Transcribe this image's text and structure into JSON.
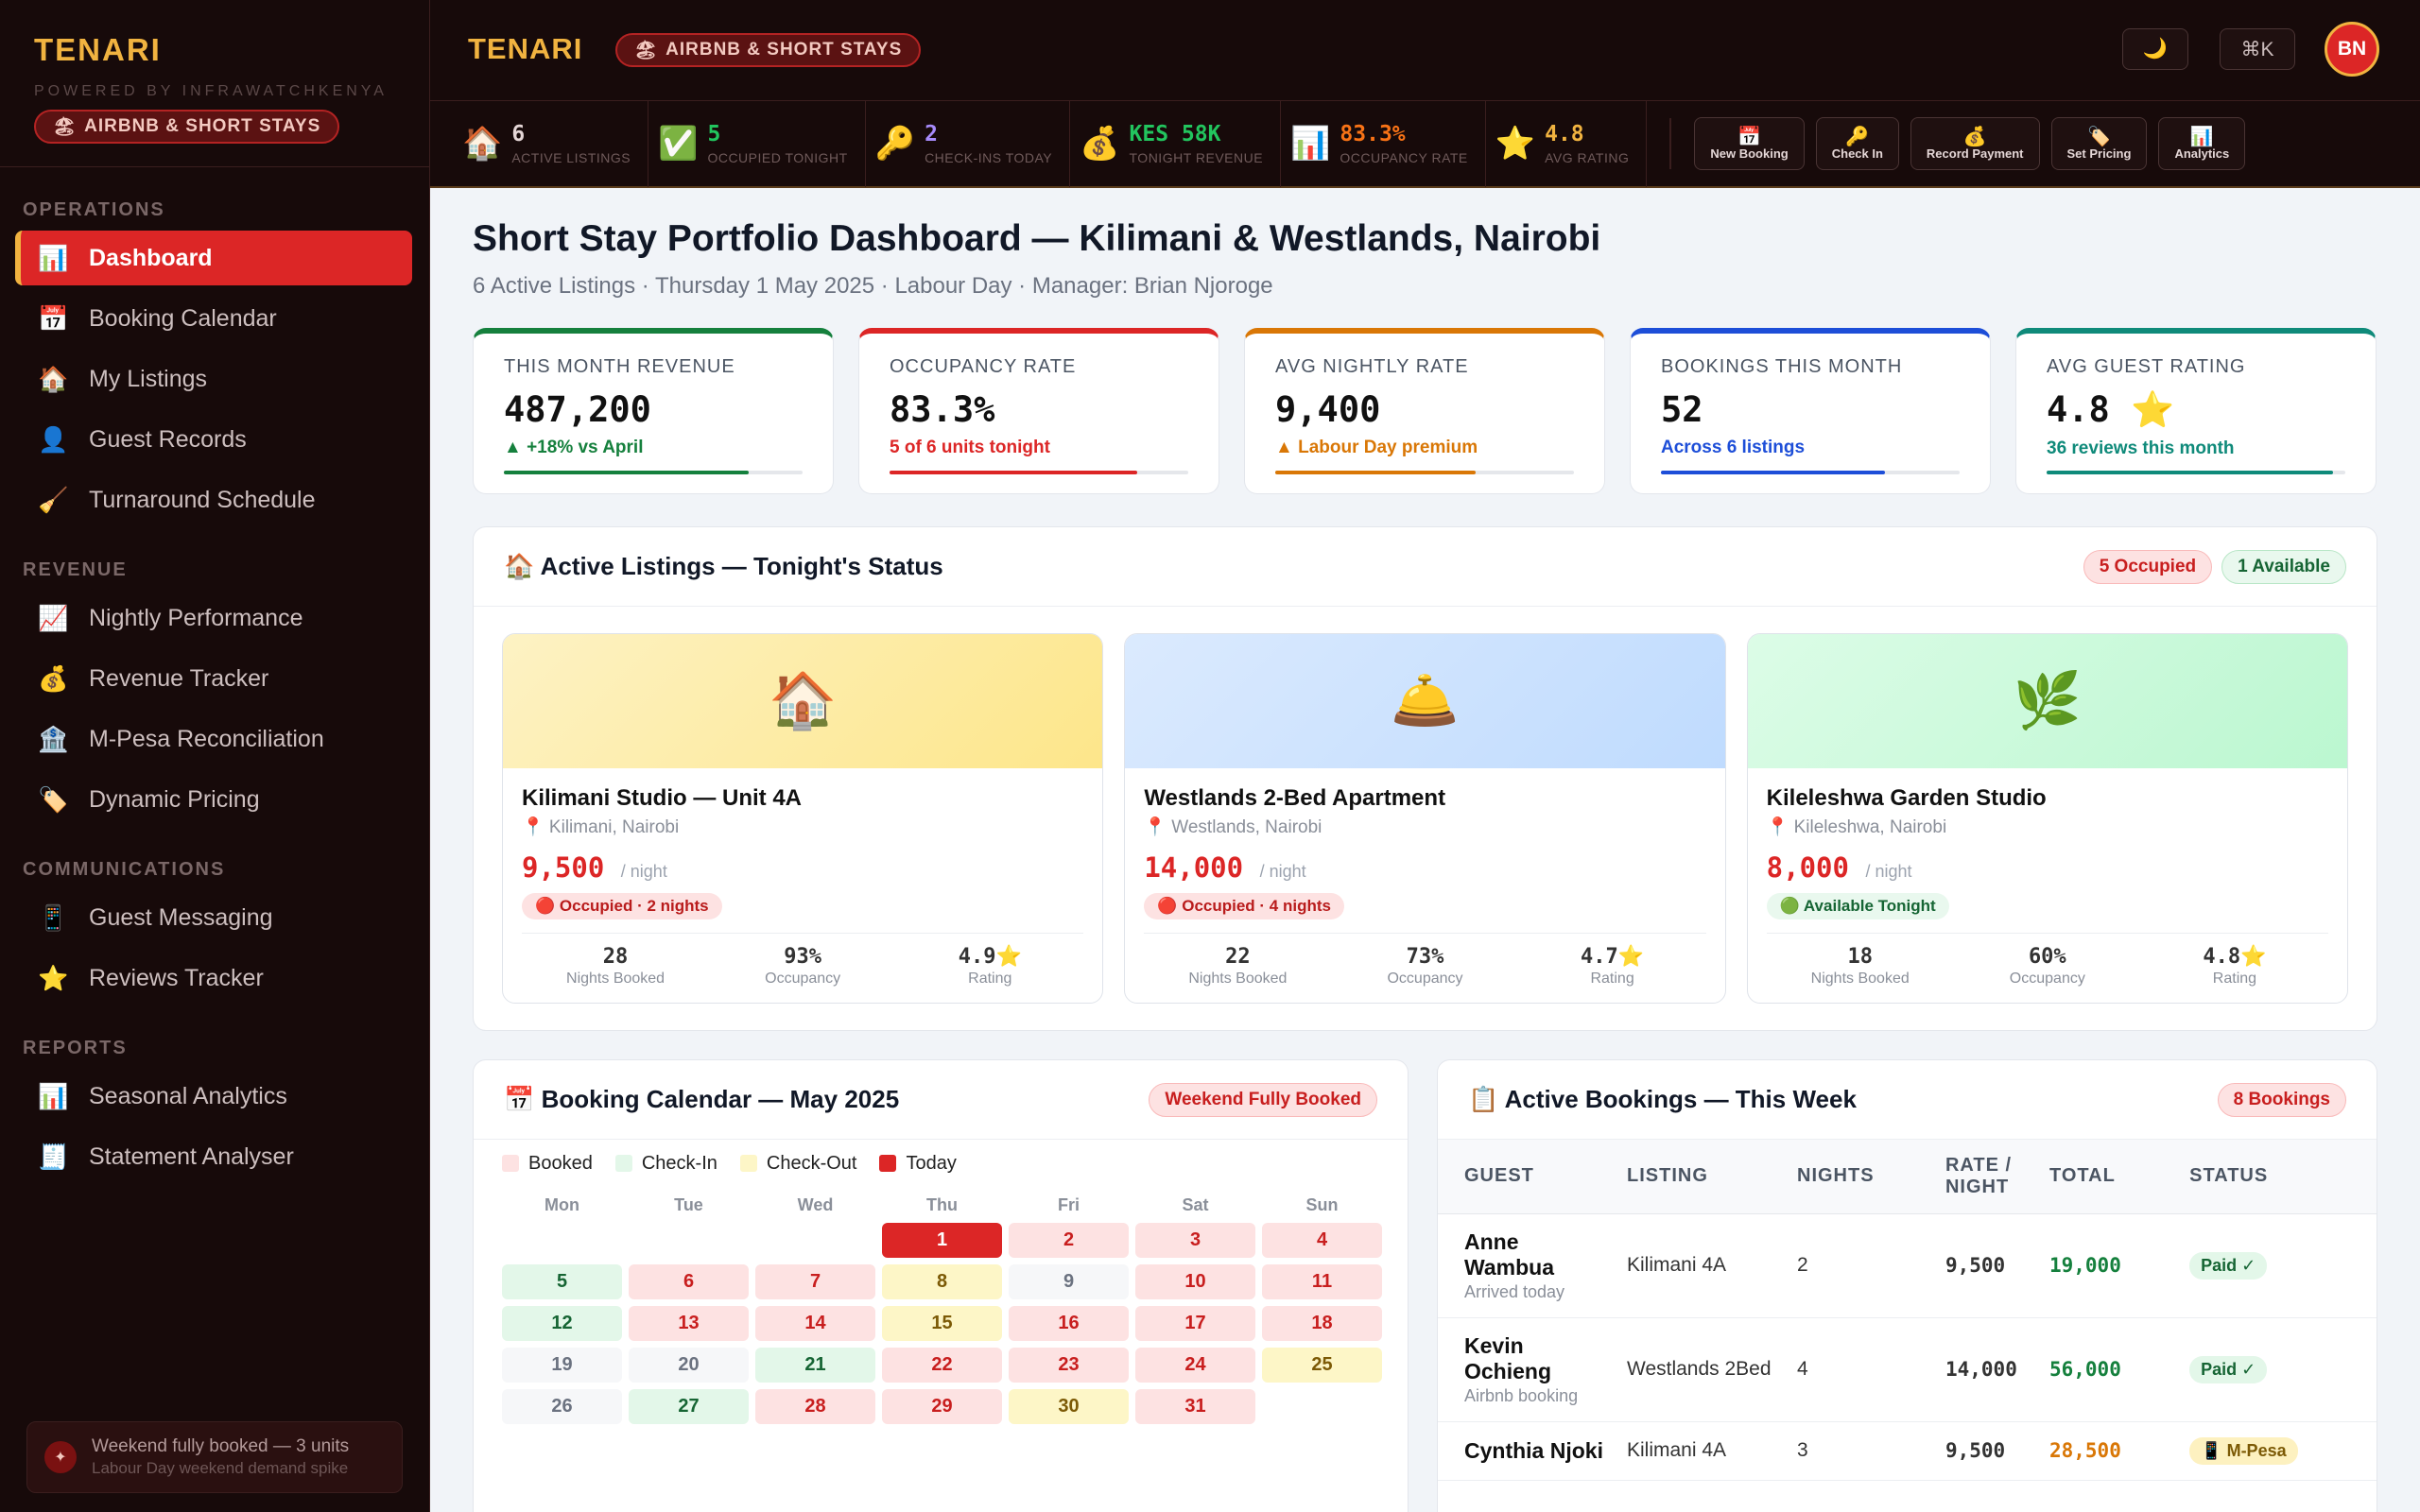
{
  "brand": {
    "title": "TENARI",
    "powered_by": "POWERED BY INFRAWATCHKENYA",
    "tag": "AIRBNB & SHORT STAYS",
    "tag_icon": "🏖"
  },
  "sidebar": {
    "sections": [
      {
        "label": "OPERATIONS",
        "items": [
          {
            "icon": "📊",
            "label": "Dashboard",
            "active": true
          },
          {
            "icon": "📅",
            "label": "Booking Calendar"
          },
          {
            "icon": "🏠",
            "label": "My Listings"
          },
          {
            "icon": "👤",
            "label": "Guest Records"
          },
          {
            "icon": "🧹",
            "label": "Turnaround Schedule"
          }
        ]
      },
      {
        "label": "REVENUE",
        "items": [
          {
            "icon": "📈",
            "label": "Nightly Performance"
          },
          {
            "icon": "💰",
            "label": "Revenue Tracker"
          },
          {
            "icon": "🏦",
            "label": "M-Pesa Reconciliation"
          },
          {
            "icon": "🏷️",
            "label": "Dynamic Pricing"
          }
        ]
      },
      {
        "label": "COMMUNICATIONS",
        "items": [
          {
            "icon": "📱",
            "label": "Guest Messaging"
          },
          {
            "icon": "⭐",
            "label": "Reviews Tracker"
          }
        ]
      },
      {
        "label": "REPORTS",
        "items": [
          {
            "icon": "📊",
            "label": "Seasonal Analytics"
          },
          {
            "icon": "🧾",
            "label": "Statement Analyser"
          }
        ]
      }
    ],
    "footer": {
      "icon": "✦",
      "line1": "Weekend fully booked — 3 units",
      "line2": "Labour Day weekend demand spike"
    }
  },
  "topbar": {
    "title": "TENARI",
    "tag": "AIRBNB & SHORT STAYS",
    "tag_icon": "🏖",
    "theme_icon": "🌙",
    "shortcut": "⌘K",
    "avatar": "BN"
  },
  "stats": [
    {
      "icon": "🏠",
      "value": "6",
      "label": "ACTIVE LISTINGS",
      "color": "#e5d7d7"
    },
    {
      "icon": "✅",
      "value": "5",
      "label": "OCCUPIED TONIGHT",
      "color": "#22c55e"
    },
    {
      "icon": "🔑",
      "value": "2",
      "label": "CHECK-INS TODAY",
      "color": "#a78bfa"
    },
    {
      "icon": "💰",
      "value": "KES 58K",
      "label": "TONIGHT REVENUE",
      "color": "#22c55e"
    },
    {
      "icon": "📊",
      "value": "83.3%",
      "label": "OCCUPANCY RATE",
      "color": "#f97316"
    },
    {
      "icon": "⭐",
      "value": "4.8",
      "label": "AVG RATING",
      "color": "#f1b340"
    }
  ],
  "quick_actions": [
    {
      "icon": "📅",
      "label": "New Booking"
    },
    {
      "icon": "🔑",
      "label": "Check In"
    },
    {
      "icon": "💰",
      "label": "Record Payment"
    },
    {
      "icon": "🏷️",
      "label": "Set Pricing"
    },
    {
      "icon": "📊",
      "label": "Analytics"
    }
  ],
  "page": {
    "title": "Short Stay Portfolio Dashboard — Kilimani & Westlands, Nairobi",
    "subtitle": "6 Active Listings · Thursday 1 May 2025 · Labour Day · Manager: Brian Njoroge"
  },
  "kpis": [
    {
      "label": "THIS MONTH REVENUE",
      "value": "487,200",
      "note": "▲ +18% vs April",
      "color": "#15803d",
      "progress": 0.82
    },
    {
      "label": "OCCUPANCY RATE",
      "value": "83.3%",
      "note": "5 of 6 units tonight",
      "color": "#dc2626",
      "progress": 0.83
    },
    {
      "label": "AVG NIGHTLY RATE",
      "value": "9,400",
      "note": "▲ Labour Day premium",
      "color": "#d97706",
      "progress": 0.67
    },
    {
      "label": "BOOKINGS THIS MONTH",
      "value": "52",
      "note": "Across 6 listings",
      "color": "#1d4ed8",
      "progress": 0.75
    },
    {
      "label": "AVG GUEST RATING",
      "value": "4.8  ⭐",
      "note": "36 reviews this month",
      "color": "#0f8a7a",
      "progress": 0.96
    }
  ],
  "listings": {
    "title": "🏠 Active Listings — Tonight's Status",
    "occupied_badge": "5 Occupied",
    "available_badge": "1 Available",
    "cards": [
      {
        "icon": "🏠",
        "gradient": [
          "#fdf2c4",
          "#fde68a"
        ],
        "name": "Kilimani Studio — Unit 4A",
        "location": "📍 Kilimani, Nairobi",
        "price": "9,500",
        "per": "/ night",
        "status": "🔴 Occupied · 2 nights",
        "status_type": "occ",
        "nights": "28",
        "nights_label": "Nights Booked",
        "occupancy": "93%",
        "occupancy_label": "Occupancy",
        "rating": "4.9⭐",
        "rating_label": "Rating"
      },
      {
        "icon": "🛎️",
        "gradient": [
          "#dbeafe",
          "#bfdbfe"
        ],
        "name": "Westlands 2-Bed Apartment",
        "location": "📍 Westlands, Nairobi",
        "price": "14,000",
        "per": "/ night",
        "status": "🔴 Occupied · 4 nights",
        "status_type": "occ",
        "nights": "22",
        "nights_label": "Nights Booked",
        "occupancy": "73%",
        "occupancy_label": "Occupancy",
        "rating": "4.7⭐",
        "rating_label": "Rating"
      },
      {
        "icon": "🌿",
        "gradient": [
          "#dcfce7",
          "#bbf7d0"
        ],
        "name": "Kileleshwa Garden Studio",
        "location": "📍 Kileleshwa, Nairobi",
        "price": "8,000",
        "per": "/ night",
        "status": "🟢 Available Tonight",
        "status_type": "av",
        "nights": "18",
        "nights_label": "Nights Booked",
        "occupancy": "60%",
        "occupancy_label": "Occupancy",
        "rating": "4.8⭐",
        "rating_label": "Rating"
      }
    ]
  },
  "calendar": {
    "title": "📅 Booking Calendar — May 2025",
    "badge": "Weekend Fully Booked",
    "legend": [
      {
        "label": "Booked",
        "color": "#fde2e2"
      },
      {
        "label": "Check-In",
        "color": "#e3f7e9"
      },
      {
        "label": "Check-Out",
        "color": "#fdf6c7"
      },
      {
        "label": "Today",
        "color": "#dc2626"
      }
    ],
    "weekdays": [
      "Mon",
      "Tue",
      "Wed",
      "Thu",
      "Fri",
      "Sat",
      "Sun"
    ],
    "days": [
      {
        "d": "",
        "s": "empty"
      },
      {
        "d": "",
        "s": "empty"
      },
      {
        "d": "",
        "s": "empty"
      },
      {
        "d": "1",
        "s": "today"
      },
      {
        "d": "2",
        "s": "booked"
      },
      {
        "d": "3",
        "s": "booked"
      },
      {
        "d": "4",
        "s": "booked"
      },
      {
        "d": "5",
        "s": "checkin"
      },
      {
        "d": "6",
        "s": "booked"
      },
      {
        "d": "7",
        "s": "booked"
      },
      {
        "d": "8",
        "s": "checkout"
      },
      {
        "d": "9",
        "s": "free"
      },
      {
        "d": "10",
        "s": "booked"
      },
      {
        "d": "11",
        "s": "booked"
      },
      {
        "d": "12",
        "s": "checkin"
      },
      {
        "d": "13",
        "s": "booked"
      },
      {
        "d": "14",
        "s": "booked"
      },
      {
        "d": "15",
        "s": "checkout"
      },
      {
        "d": "16",
        "s": "booked"
      },
      {
        "d": "17",
        "s": "booked"
      },
      {
        "d": "18",
        "s": "booked"
      },
      {
        "d": "19",
        "s": "free"
      },
      {
        "d": "20",
        "s": "free"
      },
      {
        "d": "21",
        "s": "checkin"
      },
      {
        "d": "22",
        "s": "booked"
      },
      {
        "d": "23",
        "s": "booked"
      },
      {
        "d": "24",
        "s": "booked"
      },
      {
        "d": "25",
        "s": "checkout"
      },
      {
        "d": "26",
        "s": "free"
      },
      {
        "d": "27",
        "s": "checkin"
      },
      {
        "d": "28",
        "s": "booked"
      },
      {
        "d": "29",
        "s": "booked"
      },
      {
        "d": "30",
        "s": "checkout"
      },
      {
        "d": "31",
        "s": "booked"
      }
    ]
  },
  "bookings": {
    "title": "📋 Active Bookings — This Week",
    "badge": "8 Bookings",
    "headers": [
      "GUEST",
      "LISTING",
      "NIGHTS",
      "RATE / NIGHT",
      "TOTAL",
      "STATUS"
    ],
    "rows": [
      {
        "guest": "Anne Wambua",
        "note": "Arrived today",
        "listing": "Kilimani 4A",
        "nights": "2",
        "rate": "9,500",
        "total": "19,000",
        "total_color": "#15803d",
        "status": "Paid ✓",
        "status_type": "paid"
      },
      {
        "guest": "Kevin Ochieng",
        "note": "Airbnb booking",
        "listing": "Westlands 2Bed",
        "nights": "4",
        "rate": "14,000",
        "total": "56,000",
        "total_color": "#15803d",
        "status": "Paid ✓",
        "status_type": "paid"
      },
      {
        "guest": "Cynthia Njoki",
        "note": "",
        "listing": "Kilimani 4A",
        "nights": "3",
        "rate": "9,500",
        "total": "28,500",
        "total_color": "#d97706",
        "status": "📱 M-Pesa",
        "status_type": "mpesa"
      }
    ]
  }
}
